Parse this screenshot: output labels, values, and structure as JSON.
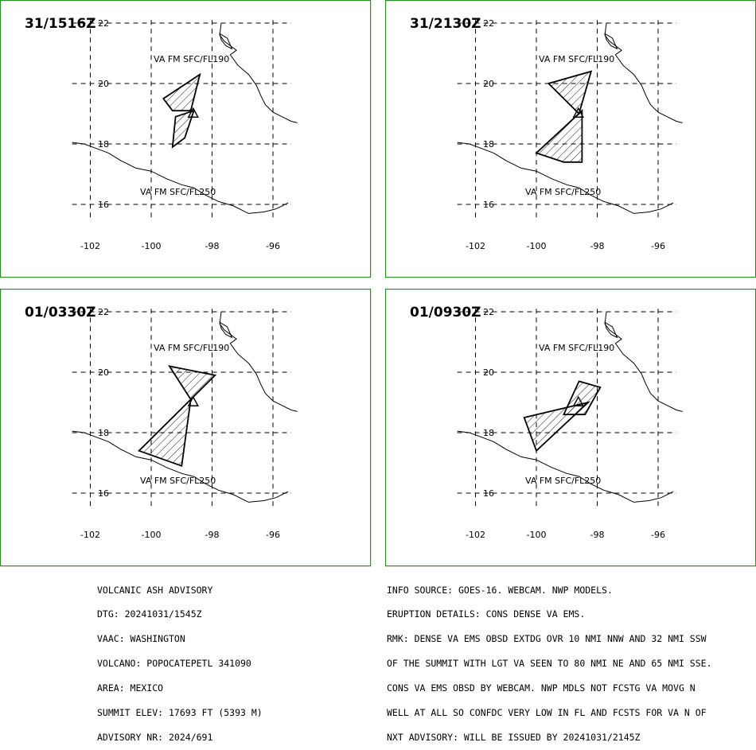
{
  "panels": [
    {
      "id": "p1",
      "timestamp": "31/1516Z",
      "upper_label": "VA FM SFC/FL190",
      "lower_label": "VA FM SFC/FL250",
      "upper_polygon": [
        [
          -98.4,
          20.3
        ],
        [
          -99.6,
          19.5
        ],
        [
          -99.3,
          19.1
        ],
        [
          -98.7,
          19.1
        ]
      ],
      "lower_polygon": [
        [
          -98.6,
          19.1
        ],
        [
          -99.2,
          18.9
        ],
        [
          -99.3,
          17.9
        ],
        [
          -98.9,
          18.2
        ]
      ]
    },
    {
      "id": "p2",
      "timestamp": "31/2130Z",
      "upper_label": "VA FM SFC/FL190",
      "lower_label": "VA FM SFC/FL250",
      "upper_polygon": [
        [
          -98.2,
          20.4
        ],
        [
          -99.6,
          20.0
        ],
        [
          -98.6,
          19.0
        ]
      ],
      "lower_polygon": [
        [
          -98.5,
          19.1
        ],
        [
          -100.0,
          17.7
        ],
        [
          -99.1,
          17.4
        ],
        [
          -98.5,
          17.4
        ]
      ]
    },
    {
      "id": "p3",
      "timestamp": "01/0330Z",
      "upper_label": "VA FM SFC/FL190",
      "lower_label": "VA FM SFC/FL250",
      "upper_polygon": [
        [
          -99.4,
          20.2
        ],
        [
          -97.9,
          19.9
        ],
        [
          -98.7,
          19.1
        ]
      ],
      "lower_polygon": [
        [
          -98.7,
          19.1
        ],
        [
          -100.4,
          17.4
        ],
        [
          -99.0,
          16.9
        ]
      ]
    },
    {
      "id": "p4",
      "timestamp": "01/0930Z",
      "upper_label": "VA FM SFC/FL190",
      "lower_label": "VA FM SFC/FL250",
      "upper_polygon": [
        [
          -98.6,
          19.7
        ],
        [
          -97.9,
          19.5
        ],
        [
          -98.4,
          18.6
        ],
        [
          -99.1,
          18.6
        ]
      ],
      "lower_polygon": [
        [
          -98.3,
          19.0
        ],
        [
          -100.4,
          18.5
        ],
        [
          -100.0,
          17.4
        ]
      ]
    }
  ],
  "axes": {
    "lat_ticks": [
      16,
      18,
      20,
      22
    ],
    "lon_ticks": [
      -102,
      -100,
      -98,
      -96
    ],
    "lat_labels": [
      "16",
      "18",
      "20",
      "22"
    ],
    "lon_labels": [
      "-102",
      "-100",
      "-98",
      "-96"
    ]
  },
  "volcano": {
    "lon": -98.62,
    "lat": 19.02
  },
  "left_text": [
    "VOLCANIC ASH ADVISORY",
    "DTG: 20241031/1545Z",
    "VAAC: WASHINGTON",
    "VOLCANO: POPOCATEPETL 341090",
    "AREA: MEXICO",
    "SUMMIT ELEV: 17693 FT (5393 M)",
    "ADVISORY NR: 2024/691"
  ],
  "right_text": [
    "INFO SOURCE: GOES-16. WEBCAM. NWP MODELS.",
    "ERUPTION DETAILS: CONS DENSE VA EMS.",
    "RMK: DENSE VA EMS OBSD EXTDG OVR 10 NMI NNW AND 32 NMI SSW",
    "OF THE SUMMIT WITH LGT VA SEEN TO 80 NMI NE AND 65 NMI SSE.",
    "CONS VA EMS OBSD BY WEBCAM. NWP MDLS NOT FCSTG VA MOVG N",
    "WELL AT ALL SO CONFDC VERY LOW IN FL AND FCSTS FOR VA N OF",
    "NXT ADVISORY: WILL BE ISSUED BY 20241031/2145Z"
  ]
}
